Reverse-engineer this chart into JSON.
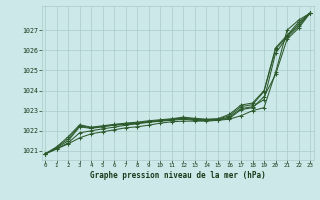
{
  "bg_color": "#cce8e8",
  "grid_color": "#aacccc",
  "line_color": "#2d5a2d",
  "title": "Graphe pression niveau de la mer (hPa)",
  "title_color": "#1a3a1a",
  "ylabel_values": [
    1021,
    1022,
    1023,
    1024,
    1025,
    1026,
    1027
  ],
  "xlabel_values": [
    0,
    1,
    2,
    3,
    4,
    5,
    6,
    7,
    8,
    9,
    10,
    11,
    12,
    13,
    14,
    15,
    16,
    17,
    18,
    19,
    20,
    21,
    22,
    23
  ],
  "ylim": [
    1020.55,
    1028.2
  ],
  "xlim": [
    -0.3,
    23.3
  ],
  "series": [
    [
      1020.85,
      1021.1,
      1021.35,
      1021.65,
      1021.85,
      1021.95,
      1022.05,
      1022.15,
      1022.2,
      1022.28,
      1022.38,
      1022.45,
      1022.48,
      1022.48,
      1022.48,
      1022.52,
      1022.58,
      1022.75,
      1023.0,
      1023.15,
      1024.9,
      1027.0,
      1027.5,
      1027.85
    ],
    [
      1020.85,
      1021.1,
      1021.4,
      1021.9,
      1022.0,
      1022.1,
      1022.18,
      1022.28,
      1022.35,
      1022.42,
      1022.48,
      1022.52,
      1022.58,
      1022.52,
      1022.52,
      1022.55,
      1022.62,
      1023.05,
      1023.15,
      1023.7,
      1024.8,
      1026.55,
      1027.1,
      1027.85
    ],
    [
      1020.85,
      1021.15,
      1021.5,
      1022.2,
      1022.12,
      1022.2,
      1022.28,
      1022.32,
      1022.38,
      1022.45,
      1022.5,
      1022.55,
      1022.62,
      1022.55,
      1022.52,
      1022.55,
      1022.68,
      1023.1,
      1023.2,
      1023.55,
      1025.85,
      1026.65,
      1027.2,
      1027.85
    ],
    [
      1020.85,
      1021.18,
      1021.6,
      1022.25,
      1022.15,
      1022.22,
      1022.3,
      1022.35,
      1022.4,
      1022.46,
      1022.52,
      1022.57,
      1022.65,
      1022.58,
      1022.55,
      1022.58,
      1022.75,
      1023.2,
      1023.3,
      1023.95,
      1026.05,
      1026.7,
      1027.3,
      1027.85
    ],
    [
      1020.85,
      1021.2,
      1021.7,
      1022.3,
      1022.18,
      1022.25,
      1022.32,
      1022.38,
      1022.43,
      1022.5,
      1022.55,
      1022.6,
      1022.68,
      1022.62,
      1022.58,
      1022.6,
      1022.82,
      1023.28,
      1023.38,
      1024.0,
      1026.12,
      1026.75,
      1027.4,
      1027.85
    ]
  ]
}
